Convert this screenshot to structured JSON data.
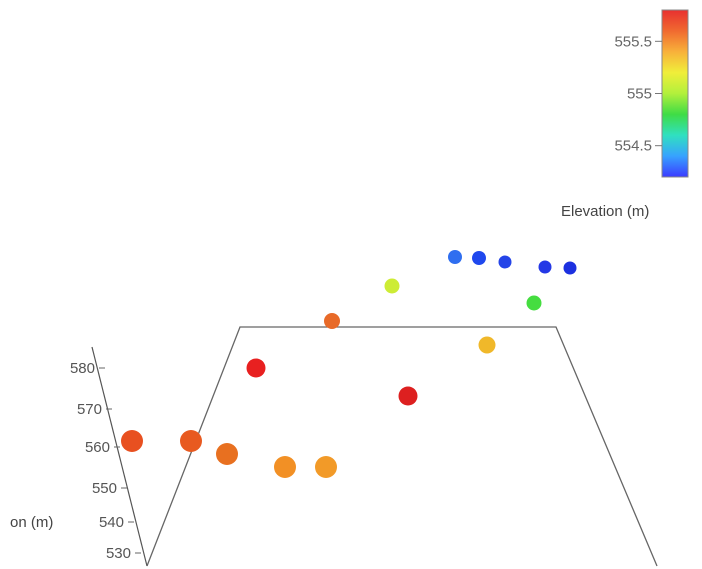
{
  "chart_data": {
    "type": "scatter",
    "projection": "3d",
    "zlabel": "Elevation (m)",
    "zticks": [
      530,
      540,
      550,
      560,
      570,
      580
    ],
    "colorbar": {
      "title": "Elevation (m)",
      "ticks": [
        "555.5",
        "555",
        "554.5"
      ],
      "range": [
        554.2,
        555.8
      ],
      "colormap": [
        "#3b3bff",
        "#37a2ff",
        "#30e0c0",
        "#3fdc45",
        "#b2f03c",
        "#f0ee3a",
        "#f8b13a",
        "#f06a30",
        "#e83030"
      ]
    },
    "points": [
      {
        "elevation": 555.7,
        "z": 560,
        "color": "#e85020"
      },
      {
        "elevation": 555.7,
        "z": 562,
        "color": "#e85a20"
      },
      {
        "elevation": 555.6,
        "z": 560,
        "color": "#e87020"
      },
      {
        "elevation": 555.5,
        "z": 557,
        "color": "#f29025"
      },
      {
        "elevation": 555.5,
        "z": 557,
        "color": "#f29a28"
      },
      {
        "elevation": 555.8,
        "z": 578,
        "color": "#e82020"
      },
      {
        "elevation": 555.6,
        "z": 596,
        "color": "#e86a28"
      },
      {
        "elevation": 555.1,
        "z": 602,
        "color": "#cdec35"
      },
      {
        "elevation": 555.8,
        "z": 573,
        "color": "#dd2020"
      },
      {
        "elevation": 555.3,
        "z": 590,
        "color": "#f0b82a"
      },
      {
        "elevation": 554.9,
        "z": 606,
        "color": "#45dd40"
      },
      {
        "elevation": 554.3,
        "z": 612,
        "color": "#2f6ef0"
      },
      {
        "elevation": 554.3,
        "z": 612,
        "color": "#1f48ee"
      },
      {
        "elevation": 554.3,
        "z": 611,
        "color": "#2444e8"
      },
      {
        "elevation": 554.2,
        "z": 610,
        "color": "#2438e6"
      },
      {
        "elevation": 554.2,
        "z": 610,
        "color": "#1c30e0"
      }
    ]
  },
  "z_axis_title_visible": "on (m)"
}
